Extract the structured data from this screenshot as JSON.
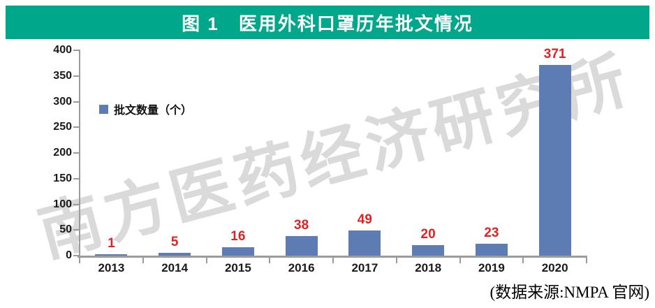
{
  "banner": {
    "title": "图 1　医用外科口罩历年批文情况",
    "background_color": "#00A78B",
    "text_color": "#FFFFFF"
  },
  "watermark": {
    "text": "南方医药经济研究所"
  },
  "chart_data": {
    "type": "bar",
    "title": "图 1　医用外科口罩历年批文情况",
    "categories": [
      "2013",
      "2014",
      "2015",
      "2016",
      "2017",
      "2018",
      "2019",
      "2020"
    ],
    "values": [
      1,
      5,
      16,
      38,
      49,
      20,
      23,
      371
    ],
    "series_name": "批文数量（个）",
    "legend_label": "批文数量（个）",
    "legend_position": "inside-upper-left",
    "xlabel": "",
    "ylabel": "",
    "ylim": [
      0,
      400
    ],
    "yticks": [
      0,
      50,
      100,
      150,
      200,
      250,
      300,
      350,
      400
    ],
    "grid": false,
    "bar_color": "#5E7CB4",
    "value_label_color": "#E02222",
    "axis_color": "#9B9B9B",
    "value_labels_shown": true
  },
  "footer": {
    "source": "(数据来源:NMPA 官网)"
  }
}
